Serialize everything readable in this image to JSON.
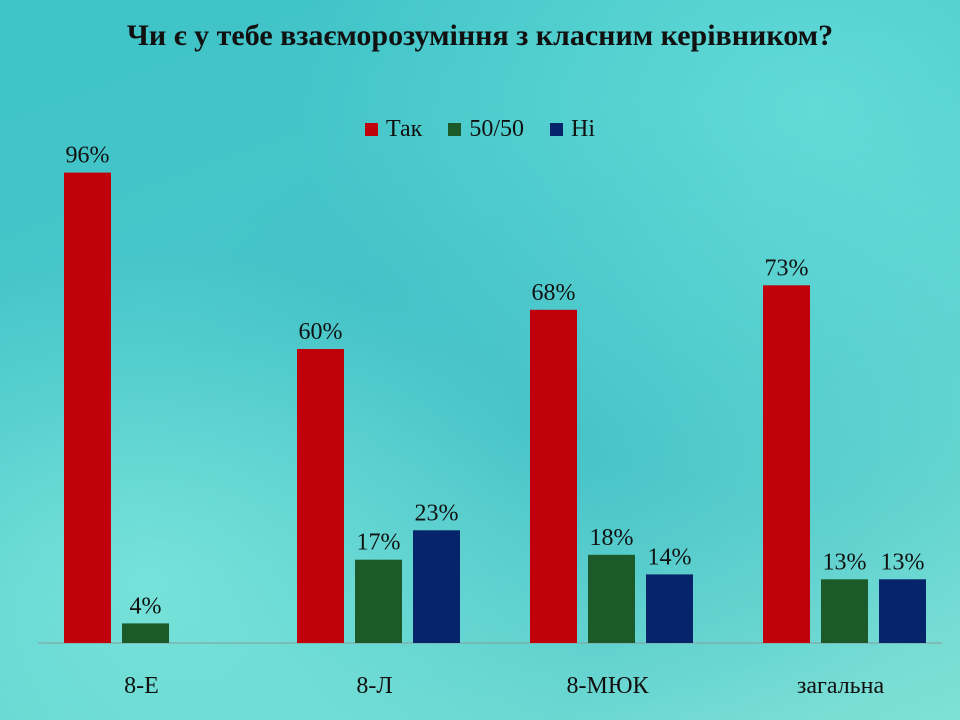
{
  "chart_data": {
    "type": "bar",
    "title": "Чи є у тебе взаєморозуміння з класним керівником?",
    "categories": [
      "8-Е",
      "8-Л",
      "8-МЮК",
      "загальна"
    ],
    "series": [
      {
        "name": "Так",
        "color": "#c0000b",
        "values": [
          96,
          60,
          68,
          73
        ],
        "labels": [
          "96%",
          "60%",
          "68%",
          "73%"
        ]
      },
      {
        "name": "50/50",
        "color": "#1c5a2a",
        "values": [
          4,
          17,
          18,
          13
        ],
        "labels": [
          "4%",
          "17%",
          "18%",
          "13%"
        ]
      },
      {
        "name": "Ні",
        "color": "#06246a",
        "values": [
          0,
          23,
          14,
          13
        ],
        "labels": [
          "",
          "23%",
          "14%",
          "13%"
        ]
      }
    ],
    "ylim": [
      0,
      100
    ],
    "legend_position": "top",
    "grid": false
  }
}
